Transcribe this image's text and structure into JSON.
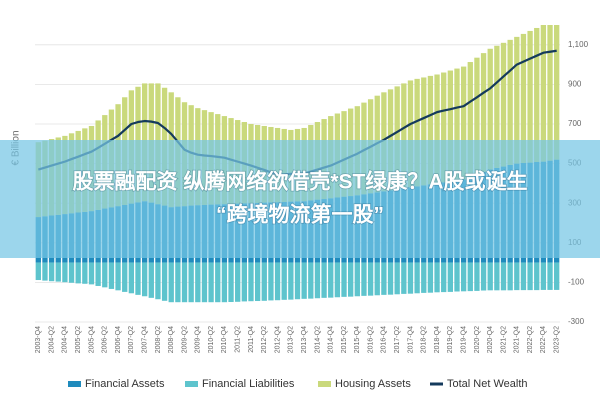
{
  "chart_data": {
    "type": "bar",
    "stacked": true,
    "ylabel": "€ Billion",
    "grid": true,
    "legend": "bottom",
    "categories": [
      "2003-Q4",
      null,
      "2004-Q2",
      null,
      "2004-Q4",
      null,
      "2005-Q2",
      null,
      "2005-Q4",
      null,
      "2006-Q2",
      null,
      "2006-Q4",
      null,
      "2007-Q2",
      null,
      "2007-Q4",
      null,
      "2008-Q2",
      null,
      "2008-Q4",
      null,
      "2009-Q2",
      null,
      "2009-Q4",
      null,
      "2010-Q2",
      null,
      "2010-Q4",
      null,
      "2011-Q2",
      null,
      "2011-Q4",
      null,
      "2012-Q2",
      null,
      "2012-Q4",
      null,
      "2013-Q2",
      null,
      "2013-Q4",
      null,
      "2014-Q2",
      null,
      "2014-Q4",
      null,
      "2015-Q2",
      null,
      "2015-Q4",
      null,
      "2016-Q2",
      null,
      "2016-Q4",
      null,
      "2017-Q2",
      null,
      "2017-Q4",
      null,
      "2018-Q2",
      null,
      "2018-Q4",
      null,
      "2019-Q2",
      null,
      "2019-Q4",
      null,
      "2020-Q2",
      null,
      "2020-Q4",
      null,
      "2021-Q2",
      null,
      "2021-Q4",
      null,
      "2022-Q2",
      null,
      "2022-Q4",
      null,
      "2023-Q2"
    ],
    "ylim": [
      -300,
      1200
    ],
    "yticks": [
      -300,
      -100,
      100,
      300,
      500,
      700,
      900,
      {
        "value": 1100,
        "label": "1,100"
      }
    ],
    "series": [
      {
        "name": "Financial Assets",
        "color": "#1f8bbd",
        "values": [
          230,
          234,
          238,
          241,
          245,
          249,
          253,
          256,
          260,
          266,
          273,
          279,
          285,
          291,
          298,
          304,
          310,
          303,
          295,
          288,
          280,
          283,
          285,
          288,
          290,
          291,
          293,
          294,
          295,
          296,
          298,
          299,
          300,
          301,
          303,
          304,
          305,
          306,
          308,
          309,
          310,
          314,
          318,
          321,
          325,
          329,
          333,
          336,
          340,
          345,
          350,
          355,
          360,
          365,
          370,
          375,
          380,
          385,
          390,
          395,
          400,
          405,
          410,
          415,
          420,
          433,
          445,
          458,
          470,
          478,
          485,
          493,
          500,
          503,
          505,
          508,
          510,
          515,
          520
        ]
      },
      {
        "name": "Financial Liabilities",
        "color": "#5ec4cd",
        "values": [
          -88,
          -91,
          -94,
          -96,
          -99,
          -102,
          -105,
          -107,
          -110,
          -118,
          -125,
          -133,
          -140,
          -148,
          -155,
          -163,
          -170,
          -178,
          -185,
          -193,
          -200,
          -200,
          -200,
          -200,
          -200,
          -200,
          -200,
          -200,
          -200,
          -199,
          -198,
          -196,
          -195,
          -194,
          -193,
          -191,
          -190,
          -188,
          -187,
          -185,
          -183,
          -182,
          -180,
          -178,
          -177,
          -175,
          -173,
          -172,
          -170,
          -168,
          -167,
          -165,
          -163,
          -162,
          -160,
          -158,
          -157,
          -155,
          -153,
          -152,
          -150,
          -149,
          -148,
          -146,
          -145,
          -144,
          -143,
          -141,
          -140,
          -140,
          -140,
          -140,
          -139,
          -139,
          -139,
          -139,
          -138,
          -138,
          -138
        ]
      },
      {
        "name": "Housing Assets",
        "color": "#cad97c",
        "values": [
          378,
          382,
          386,
          391,
          395,
          404,
          412,
          422,
          430,
          452,
          472,
          494,
          515,
          544,
          572,
          584,
          595,
          602,
          610,
          595,
          580,
          552,
          525,
          507,
          490,
          479,
          467,
          456,
          445,
          434,
          422,
          411,
          400,
          394,
          387,
          381,
          375,
          369,
          362,
          366,
          370,
          381,
          392,
          404,
          415,
          424,
          432,
          442,
          450,
          463,
          475,
          488,
          500,
          510,
          520,
          530,
          540,
          543,
          545,
          548,
          550,
          555,
          560,
          565,
          570,
          580,
          590,
          600,
          610,
          617,
          625,
          632,
          640,
          652,
          665,
          677,
          690,
          685,
          680
        ]
      },
      {
        "name": "Total Net Wealth",
        "type": "line",
        "color": "#143a5c",
        "values": [
          470,
          480,
          490,
          500,
          510,
          523,
          535,
          548,
          560,
          580,
          600,
          620,
          640,
          670,
          700,
          710,
          715,
          712,
          705,
          680,
          650,
          610,
          570,
          555,
          545,
          541,
          538,
          534,
          530,
          520,
          510,
          500,
          490,
          479,
          468,
          456,
          445,
          446,
          448,
          449,
          450,
          460,
          470,
          480,
          490,
          505,
          520,
          535,
          550,
          568,
          585,
          603,
          620,
          640,
          660,
          680,
          700,
          715,
          730,
          745,
          760,
          768,
          775,
          783,
          790,
          813,
          835,
          858,
          880,
          910,
          940,
          970,
          1000,
          1015,
          1030,
          1045,
          1060,
          1065,
          1070
        ]
      }
    ]
  },
  "overlay_title": [
    "股票融配资 纵腾网络欲借壳*ST绿康？A股或诞生",
    "“跨境物流第一股”"
  ]
}
